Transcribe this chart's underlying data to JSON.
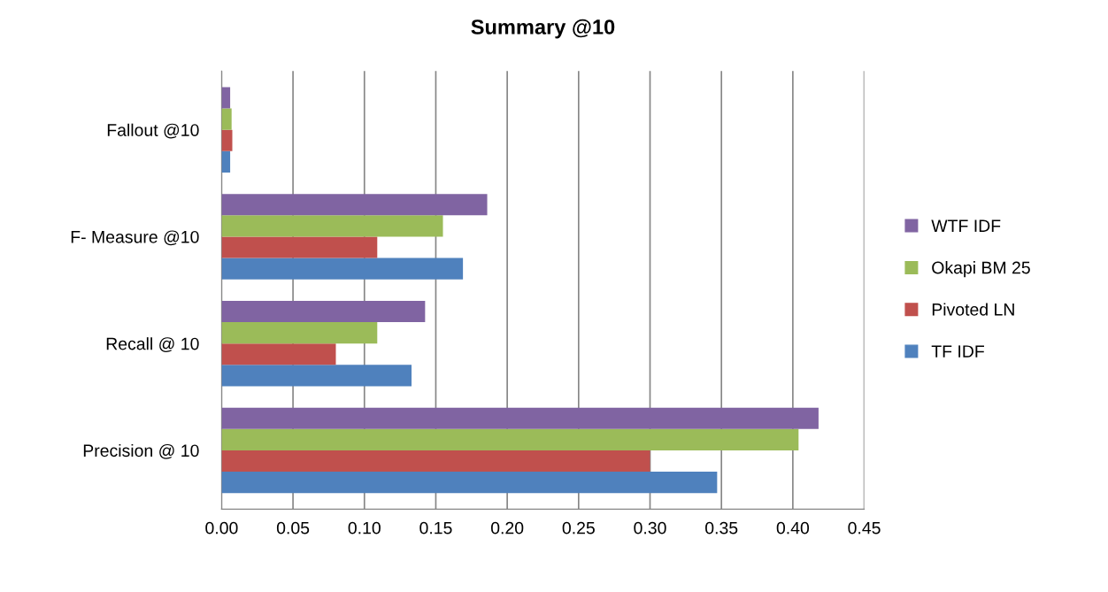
{
  "chart_data": {
    "type": "bar",
    "orientation": "horizontal",
    "title": "Summary @10",
    "categories": [
      "Fallout @10",
      "F- Measure @10",
      "Recall @ 10",
      "Precision @ 10"
    ],
    "series": [
      {
        "name": "TF IDF",
        "color": "#4f81bd",
        "values": [
          0.006,
          0.169,
          0.133,
          0.347
        ]
      },
      {
        "name": "Pivoted LN",
        "color": "#c0504d",
        "values": [
          0.0075,
          0.109,
          0.08,
          0.3
        ]
      },
      {
        "name": "Okapi BM 25",
        "color": "#9bbb59",
        "values": [
          0.007,
          0.155,
          0.109,
          0.404
        ]
      },
      {
        "name": "WTF IDF",
        "color": "#8064a2",
        "values": [
          0.006,
          0.186,
          0.1425,
          0.418
        ]
      }
    ],
    "xlim": [
      0,
      0.45
    ],
    "xticks": [
      {
        "value": 0,
        "label": "0.00"
      },
      {
        "value": 0.05,
        "label": "0.05"
      },
      {
        "value": 0.1,
        "label": "0.10"
      },
      {
        "value": 0.15,
        "label": "0.15"
      },
      {
        "value": 0.2,
        "label": "0.20"
      },
      {
        "value": 0.25,
        "label": "0.25"
      },
      {
        "value": 0.3,
        "label": "0.30"
      },
      {
        "value": 0.35,
        "label": "0.35"
      },
      {
        "value": 0.4,
        "label": "0.40"
      },
      {
        "value": 0.45,
        "label": "0.45"
      }
    ],
    "grid": "x",
    "legend": "right"
  }
}
